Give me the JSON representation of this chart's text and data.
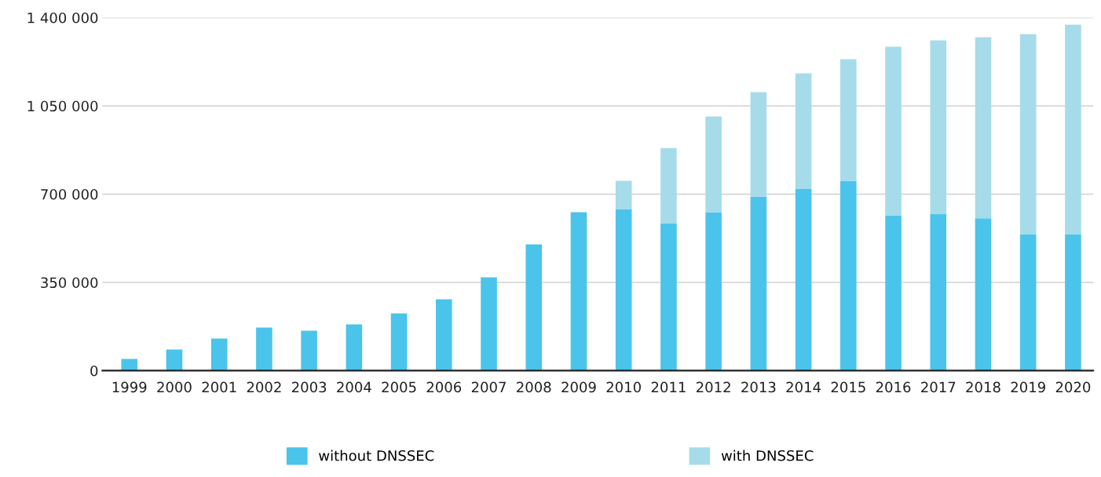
{
  "chart_data": {
    "type": "bar",
    "stacked": true,
    "categories": [
      "1999",
      "2000",
      "2001",
      "2002",
      "2003",
      "2004",
      "2005",
      "2006",
      "2007",
      "2008",
      "2009",
      "2010",
      "2011",
      "2012",
      "2013",
      "2014",
      "2015",
      "2016",
      "2017",
      "2018",
      "2019",
      "2020"
    ],
    "series": [
      {
        "name": "without DNSSEC",
        "color": "#4ac4ea",
        "values": [
          46700,
          84000,
          127500,
          171000,
          158700,
          183500,
          227000,
          283000,
          370000,
          501000,
          628000,
          641000,
          585000,
          628000,
          690000,
          722000,
          753000,
          616000,
          622000,
          604000,
          541000,
          541000
        ]
      },
      {
        "name": "with DNSSEC",
        "color": "#a6dbea",
        "values": [
          null,
          null,
          null,
          null,
          null,
          null,
          null,
          null,
          null,
          null,
          null,
          112000,
          298000,
          380000,
          414000,
          457000,
          482000,
          669000,
          688000,
          718000,
          794000,
          831000
        ]
      }
    ],
    "ylim": [
      0,
      1400000
    ],
    "yticks": [
      {
        "value": 0,
        "label": "0"
      },
      {
        "value": 350000,
        "label": "350 000"
      },
      {
        "value": 700000,
        "label": "700 000"
      },
      {
        "value": 1050000,
        "label": "1 050 000"
      },
      {
        "value": 1400000,
        "label": "1 400 000"
      }
    ],
    "grid": "y",
    "legend": "bottom"
  }
}
